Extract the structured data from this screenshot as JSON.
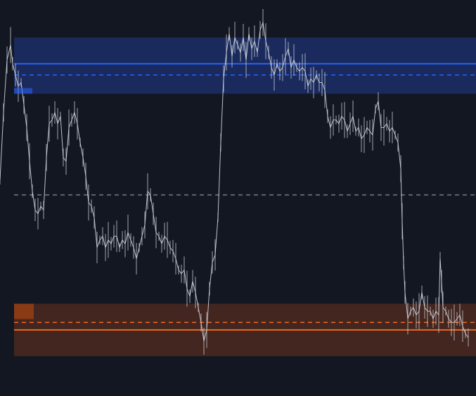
{
  "chart_data": {
    "type": "line",
    "title": "",
    "xlabel": "",
    "ylabel": "",
    "x_range": [
      0,
      677
    ],
    "y_range": [
      0,
      100
    ],
    "grid": false,
    "background_color": "#131722",
    "series": [
      {
        "color": "#d1d4dc",
        "x": [
          0,
          5,
          10,
          15,
          18,
          22,
          26,
          30,
          34,
          38,
          42,
          46,
          50,
          54,
          58,
          62,
          66,
          70,
          74,
          78,
          82,
          86,
          90,
          94,
          98,
          102,
          106,
          110,
          114,
          118,
          122,
          126,
          130,
          134,
          138,
          142,
          146,
          150,
          154,
          158,
          162,
          166,
          170,
          174,
          178,
          182,
          186,
          190,
          194,
          198,
          202,
          206,
          210,
          214,
          218,
          222,
          226,
          230,
          234,
          238,
          242,
          246,
          250,
          254,
          258,
          262,
          266,
          270,
          274,
          278,
          282,
          286,
          290,
          294,
          298,
          302,
          306,
          310,
          314,
          318,
          322,
          326,
          330,
          334,
          338,
          342,
          346,
          350,
          354,
          358,
          362,
          366,
          370,
          374,
          378,
          382,
          386,
          390,
          394,
          398,
          402,
          406,
          410,
          414,
          418,
          422,
          426,
          430,
          434,
          438,
          442,
          446,
          450,
          454,
          458,
          462,
          466,
          470,
          474,
          478,
          482,
          486,
          490,
          494,
          498,
          502,
          506,
          510,
          514,
          518,
          522,
          526,
          530,
          534,
          538,
          542,
          546,
          550,
          554,
          558,
          562,
          566,
          570,
          572,
          574,
          576,
          580,
          584,
          588,
          592,
          596,
          600,
          604,
          608,
          612,
          616,
          620,
          624,
          626,
          628,
          630,
          634,
          638,
          642,
          646,
          650,
          654,
          658,
          662,
          666
        ],
        "y": [
          52,
          70,
          84,
          88,
          83,
          80,
          77,
          78,
          72,
          66,
          57,
          49,
          44,
          43,
          45,
          44,
          58,
          67,
          68,
          70,
          67,
          69,
          58,
          57,
          66,
          68,
          70,
          67,
          62,
          58,
          53,
          46,
          45,
          42,
          34,
          36,
          37,
          34,
          36,
          35,
          37,
          37,
          34,
          36,
          35,
          38,
          36,
          34,
          31,
          34,
          37,
          40,
          49,
          48,
          43,
          38,
          37,
          35,
          37,
          36,
          34,
          33,
          31,
          28,
          27,
          28,
          23,
          21,
          25,
          22,
          18,
          14,
          9,
          12,
          23,
          30,
          32,
          42,
          62,
          79,
          86,
          91,
          85,
          90,
          88,
          86,
          90,
          84,
          91,
          87,
          89,
          86,
          92,
          94,
          89,
          86,
          82,
          80,
          83,
          81,
          82,
          85,
          87,
          82,
          84,
          82,
          81,
          82,
          81,
          77,
          79,
          78,
          80,
          78,
          78,
          76,
          69,
          66,
          68,
          68,
          67,
          69,
          68,
          65,
          67,
          69,
          65,
          66,
          63,
          64,
          66,
          65,
          64,
          71,
          73,
          66,
          66,
          67,
          65,
          66,
          64,
          62,
          55,
          41,
          30,
          22,
          15,
          17,
          18,
          16,
          17,
          22,
          18,
          17,
          17,
          15,
          17,
          16,
          31,
          25,
          18,
          17,
          15,
          14,
          14,
          15,
          16,
          13,
          11,
          10
        ]
      }
    ],
    "zones": [
      {
        "name": "upper-zone",
        "y_from": 75,
        "y_to": 90,
        "fill": "#1a2a5c",
        "line_color": "#2962ff",
        "line_style": "solid",
        "line_y": 83
      },
      {
        "name": "upper-zone-dashed",
        "line_color": "#2962ff",
        "line_style": "dashed",
        "line_y": 80
      },
      {
        "name": "mid-line",
        "line_color": "#787b86",
        "line_style": "dashed",
        "line_y": 48
      },
      {
        "name": "lower-zone",
        "y_from": 5,
        "y_to": 19,
        "fill": "#42261f",
        "line_color": "#f0661e",
        "line_style": "solid",
        "line_y": 12
      },
      {
        "name": "lower-zone-dashed",
        "line_color": "#f0661e",
        "line_style": "dashed",
        "line_y": 14
      }
    ]
  }
}
